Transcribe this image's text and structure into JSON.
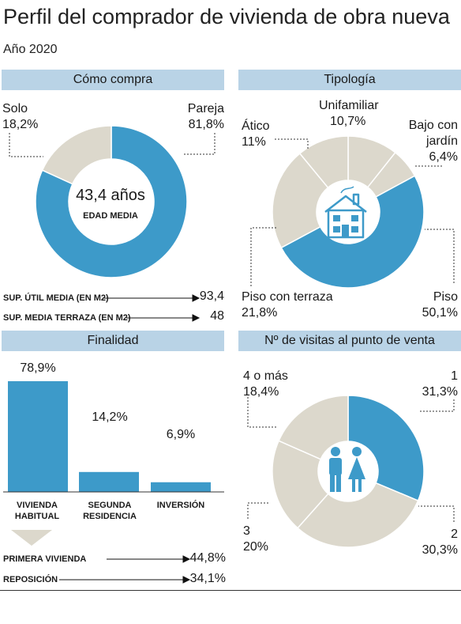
{
  "title": "Perfil del comprador de vivienda de obra nueva",
  "subtitle": "Año 2020",
  "colors": {
    "blue": "#3d9ac9",
    "beige": "#dcd8cc",
    "header": "#b9d3e6"
  },
  "como_compra": {
    "header": "Cómo compra",
    "center_value": "43,4 años",
    "center_label": "EDAD MEDIA",
    "solo_name": "Solo",
    "solo_pct": "18,2%",
    "pareja_name": "Pareja",
    "pareja_pct": "81,8%",
    "util_label": "SUP. ÚTIL MEDIA (EN M2)",
    "util_value": "93,4",
    "terraza_label": "SUP. MEDIA TERRAZA (EN M2)",
    "terraza_value": "48"
  },
  "tipologia": {
    "header": "Tipología",
    "unifamiliar_name": "Unifamiliar",
    "unifamiliar_pct": "10,7%",
    "bajo_name1": "Bajo con",
    "bajo_name2": "jardín",
    "bajo_pct": "6,4%",
    "atico_name": "Ático",
    "atico_pct": "11%",
    "piso_name": "Piso",
    "piso_pct": "50,1%",
    "terraza_name": "Piso con terraza",
    "terraza_pct": "21,8%",
    "icon": "house-icon"
  },
  "finalidad": {
    "header": "Finalidad",
    "bar_labels": [
      "78,9%",
      "14,2%",
      "6,9%"
    ],
    "cat1a": "VIVIENDA",
    "cat1b": "HABITUAL",
    "cat2a": "SEGUNDA",
    "cat2b": "RESIDENCIA",
    "cat3a": "INVERSIÓN",
    "primera_label": "PRIMERA VIVIENDA",
    "primera_value": "44,8%",
    "reposicion_label": "REPOSICIÓN",
    "reposicion_value": "34,1%"
  },
  "visitas": {
    "header": "Nº de visitas al punto de venta",
    "v1_name": "1",
    "v1_pct": "31,3%",
    "v2_name": "2",
    "v2_pct": "30,3%",
    "v3_name": "3",
    "v3_pct": "20%",
    "v4_name": "4 o más",
    "v4_pct": "18,4%",
    "icon": "couple-icon"
  },
  "chart_data": [
    {
      "type": "pie",
      "title": "Cómo compra",
      "categories": [
        "Solo",
        "Pareja"
      ],
      "values": [
        18.2,
        81.8
      ]
    },
    {
      "type": "pie",
      "title": "Tipología",
      "categories": [
        "Unifamiliar",
        "Bajo con jardín",
        "Piso",
        "Piso con terraza",
        "Ático"
      ],
      "values": [
        10.7,
        6.4,
        50.1,
        21.8,
        11
      ]
    },
    {
      "type": "bar",
      "title": "Finalidad",
      "categories": [
        "VIVIENDA HABITUAL",
        "SEGUNDA RESIDENCIA",
        "INVERSIÓN"
      ],
      "values": [
        78.9,
        14.2,
        6.9
      ],
      "ylim": [
        0,
        78.9
      ]
    },
    {
      "type": "pie",
      "title": "Nº de visitas al punto de venta",
      "categories": [
        "1",
        "2",
        "3",
        "4 o más"
      ],
      "values": [
        31.3,
        30.3,
        20,
        18.4
      ]
    }
  ]
}
